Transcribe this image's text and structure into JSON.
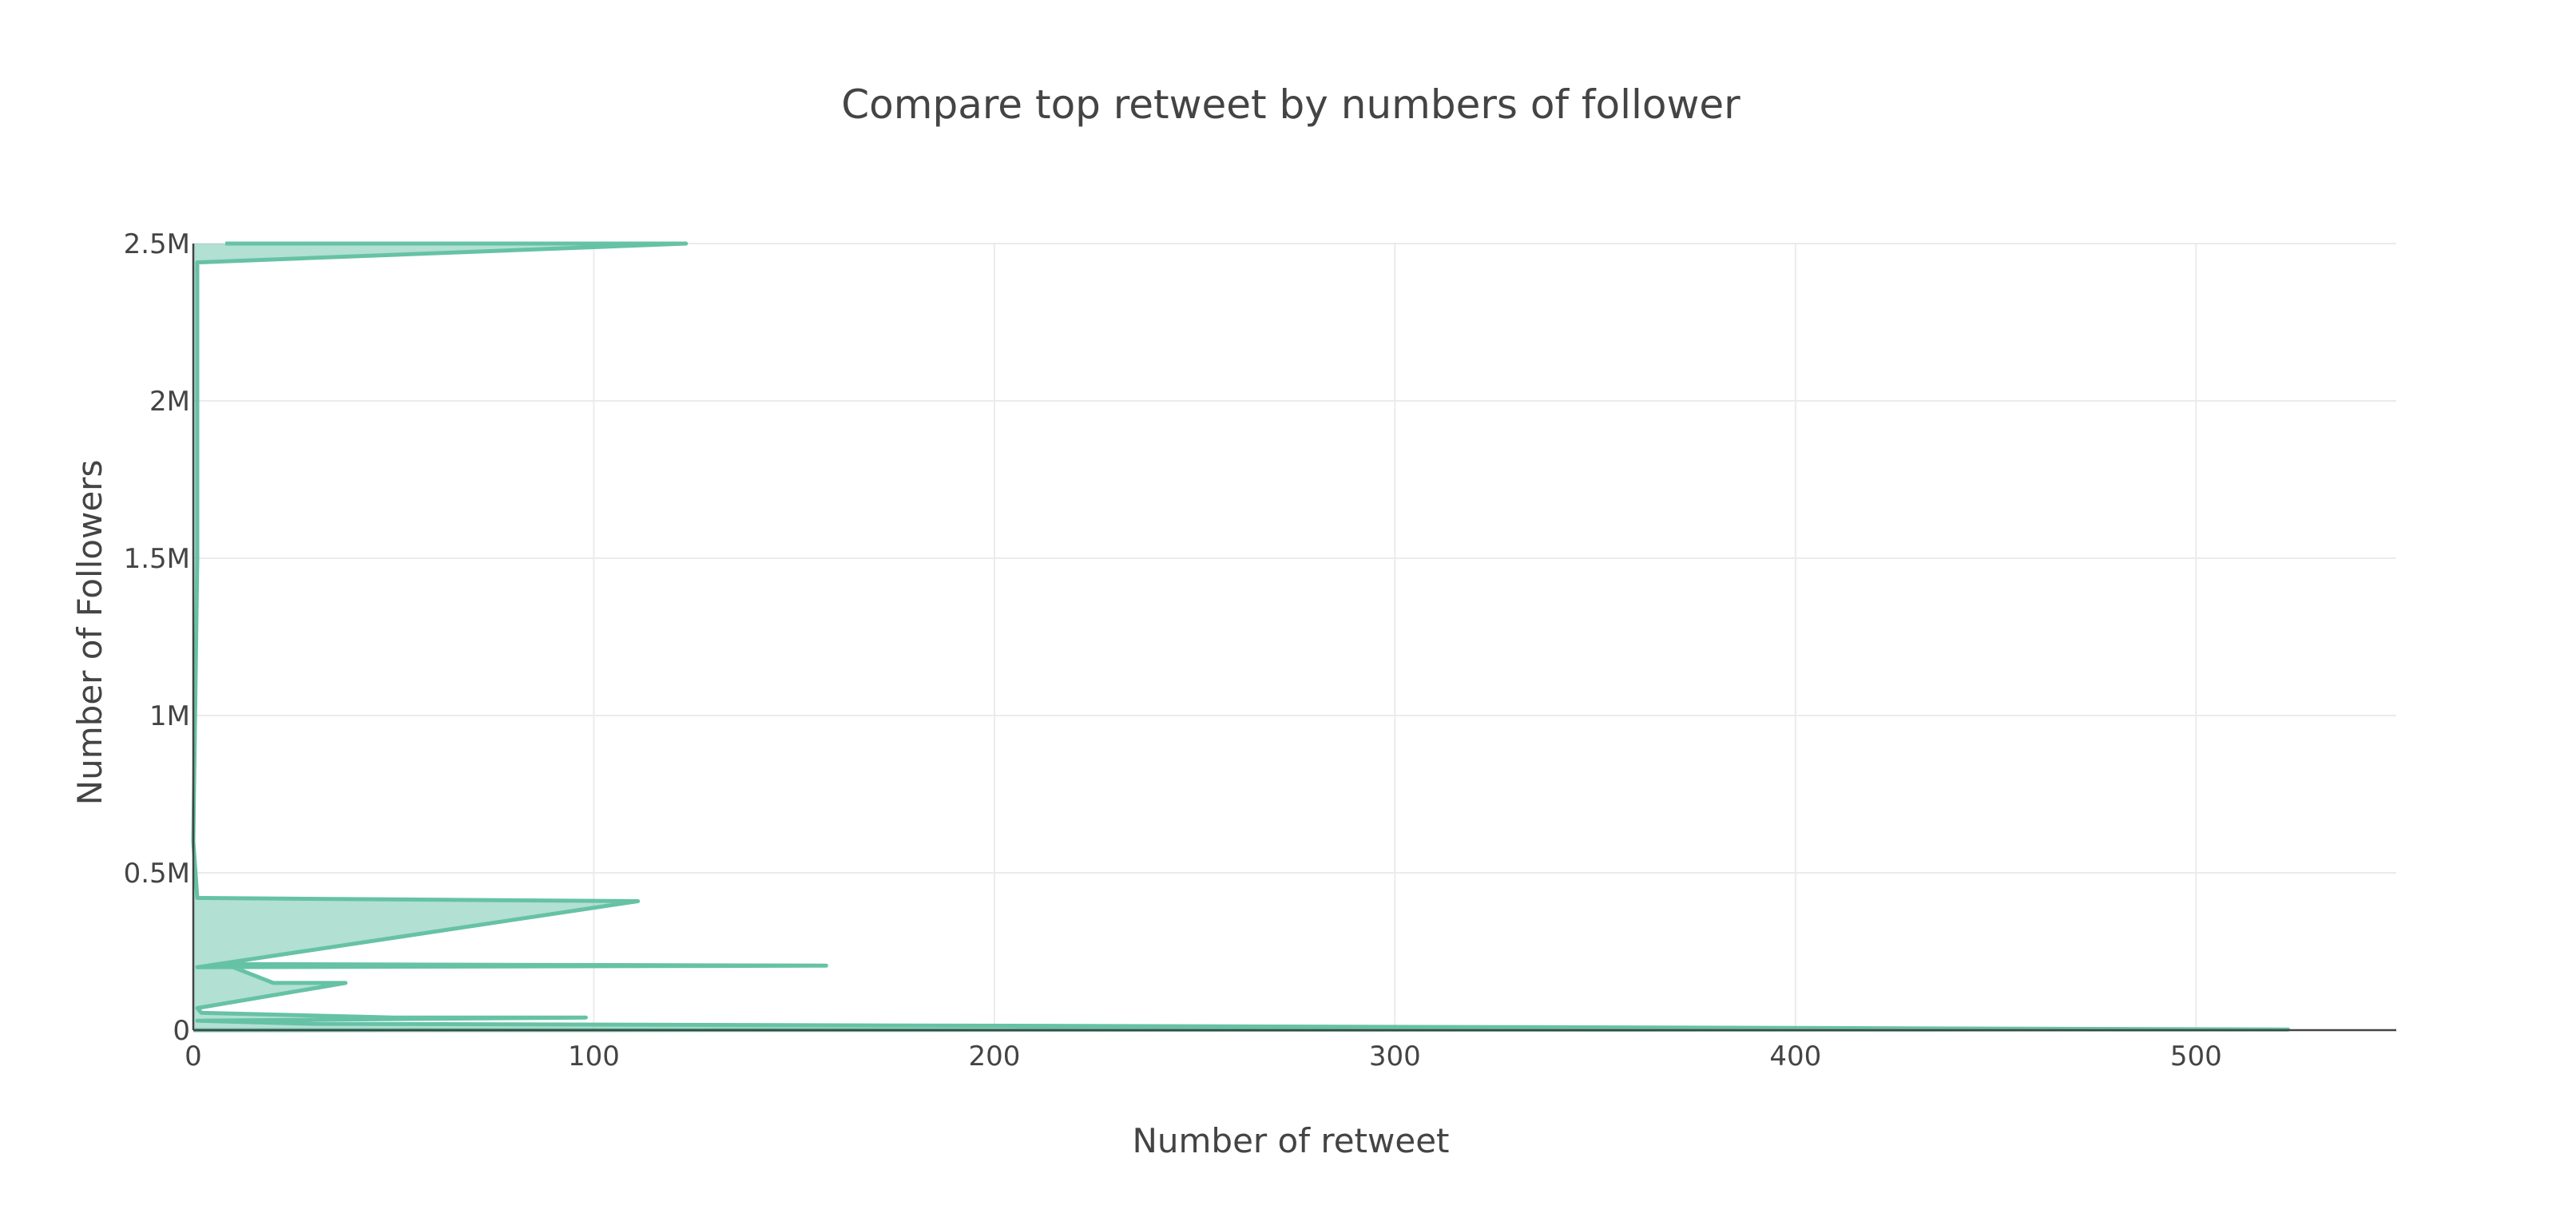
{
  "chart_data": {
    "type": "area",
    "title": "Compare top retweet by numbers of follower",
    "xlabel": "Number of retweet",
    "ylabel": "Number of Followers",
    "xlim": [
      0,
      550
    ],
    "ylim": [
      0,
      2500000
    ],
    "xticks": [
      {
        "value": 0,
        "label": "0"
      },
      {
        "value": 100,
        "label": "100"
      },
      {
        "value": 200,
        "label": "200"
      },
      {
        "value": 300,
        "label": "300"
      },
      {
        "value": 400,
        "label": "400"
      },
      {
        "value": 500,
        "label": "500"
      }
    ],
    "yticks": [
      {
        "value": 0,
        "label": "0"
      },
      {
        "value": 500000,
        "label": "0.5M"
      },
      {
        "value": 1000000,
        "label": "1M"
      },
      {
        "value": 1500000,
        "label": "1.5M"
      },
      {
        "value": 2000000,
        "label": "2M"
      },
      {
        "value": 2500000,
        "label": "2.5M"
      }
    ],
    "grid": true,
    "fill": "tozerox",
    "series_color": "#66c2a5",
    "fill_color": "rgba(102,194,165,0.5)",
    "series": [
      {
        "points": [
          {
            "retweets": 8,
            "followers": 2500000
          },
          {
            "retweets": 123,
            "followers": 2500000
          },
          {
            "retweets": 1,
            "followers": 2440000
          },
          {
            "retweets": 1,
            "followers": 1500000
          },
          {
            "retweets": 0,
            "followers": 600000
          },
          {
            "retweets": 1,
            "followers": 420000
          },
          {
            "retweets": 111,
            "followers": 410000
          },
          {
            "retweets": 1,
            "followers": 200000
          },
          {
            "retweets": 158,
            "followers": 205000
          },
          {
            "retweets": 8,
            "followers": 210000
          },
          {
            "retweets": 20,
            "followers": 150000
          },
          {
            "retweets": 38,
            "followers": 150000
          },
          {
            "retweets": 1,
            "followers": 70000
          },
          {
            "retweets": 2,
            "followers": 55000
          },
          {
            "retweets": 50,
            "followers": 40000
          },
          {
            "retweets": 98,
            "followers": 40000
          },
          {
            "retweets": 1,
            "followers": 30000
          },
          {
            "retweets": 30,
            "followers": 20000
          },
          {
            "retweets": 367,
            "followers": 8000
          },
          {
            "retweets": 523,
            "followers": 2000
          },
          {
            "retweets": 0,
            "followers": 0
          }
        ]
      }
    ]
  }
}
